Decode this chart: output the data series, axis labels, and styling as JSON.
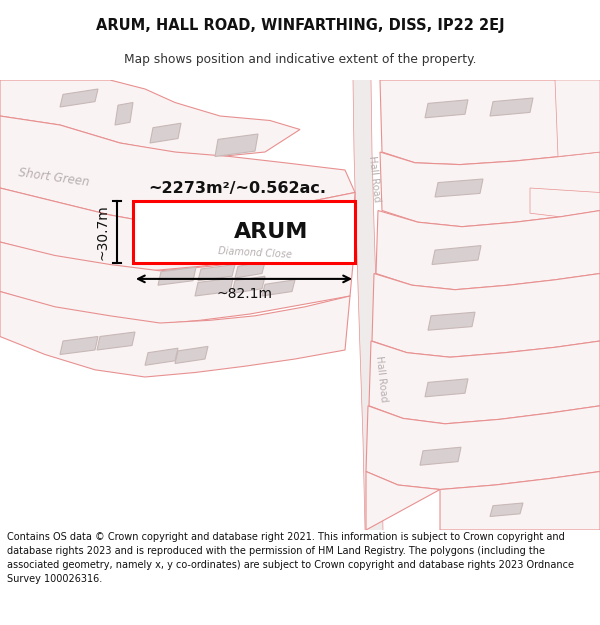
{
  "title_line1": "ARUM, HALL ROAD, WINFARTHING, DISS, IP22 2EJ",
  "title_line2": "Map shows position and indicative extent of the property.",
  "footer_text": "Contains OS data © Crown copyright and database right 2021. This information is subject to Crown copyright and database rights 2023 and is reproduced with the permission of HM Land Registry. The polygons (including the associated geometry, namely x, y co-ordinates) are subject to Crown copyright and database rights 2023 Ordnance Survey 100026316.",
  "parcel_fill": "#faf3f3",
  "parcel_edge": "#e89090",
  "building_fill": "#d8d0d0",
  "building_edge": "#c8b8b8",
  "road_fill": "#f0ebeb",
  "highlight_edge": "#ff0000",
  "highlight_fill": "#ffffff",
  "water_color": "#c2d8e8",
  "label_color": "#111111",
  "road_label_color": "#b8b0b0",
  "area_label": "~2273m²/~0.562ac.",
  "property_label": "ARUM",
  "width_label": "~82.1m",
  "height_label": "~30.7m",
  "road_label_upper": "Hall Road",
  "road_label_lower": "Hall Road",
  "street_short_green": "Short Green",
  "street_diamond": "Diamond Close"
}
